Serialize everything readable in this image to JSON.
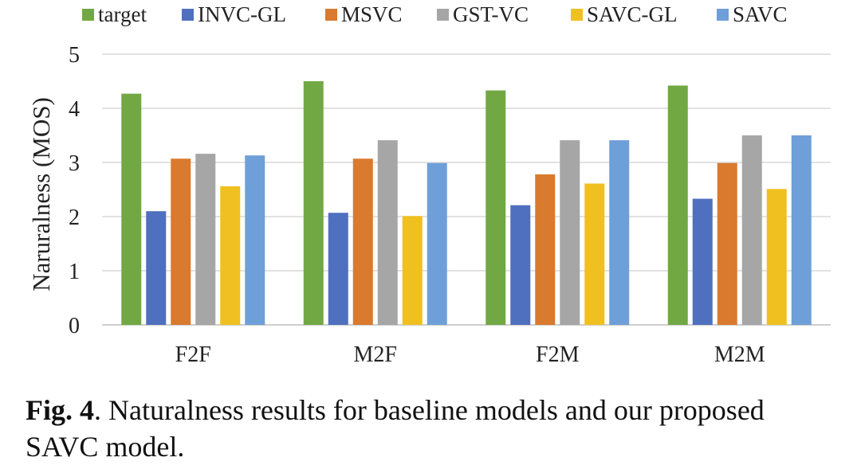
{
  "chart_data": {
    "type": "bar",
    "title": "",
    "xlabel": "",
    "ylabel": "Naruralness (MOS)",
    "ylim": [
      0,
      5
    ],
    "yticks": [
      "0",
      "1",
      "2",
      "3",
      "4",
      "5"
    ],
    "grid": true,
    "legend_position": "top",
    "categories": [
      "F2F",
      "M2F",
      "F2M",
      "M2M"
    ],
    "series": [
      {
        "name": "target",
        "color": "#72a844",
        "values": [
          4.27,
          4.5,
          4.33,
          4.42
        ]
      },
      {
        "name": "INVC-GL",
        "color": "#4f6fbf",
        "values": [
          2.1,
          2.07,
          2.21,
          2.33
        ]
      },
      {
        "name": "MSVC",
        "color": "#d97a2f",
        "values": [
          3.07,
          3.07,
          2.78,
          2.99
        ]
      },
      {
        "name": "GST-VC",
        "color": "#a6a6a6",
        "values": [
          3.16,
          3.41,
          3.41,
          3.5
        ]
      },
      {
        "name": "SAVC-GL",
        "color": "#f0c020",
        "values": [
          2.56,
          2.01,
          2.61,
          2.51
        ]
      },
      {
        "name": "SAVC",
        "color": "#6e9fd8",
        "values": [
          3.13,
          2.99,
          3.41,
          3.5
        ]
      }
    ]
  },
  "caption": {
    "label": "Fig. 4",
    "text": ". Naturalness results for baseline models and our proposed SAVC model."
  }
}
